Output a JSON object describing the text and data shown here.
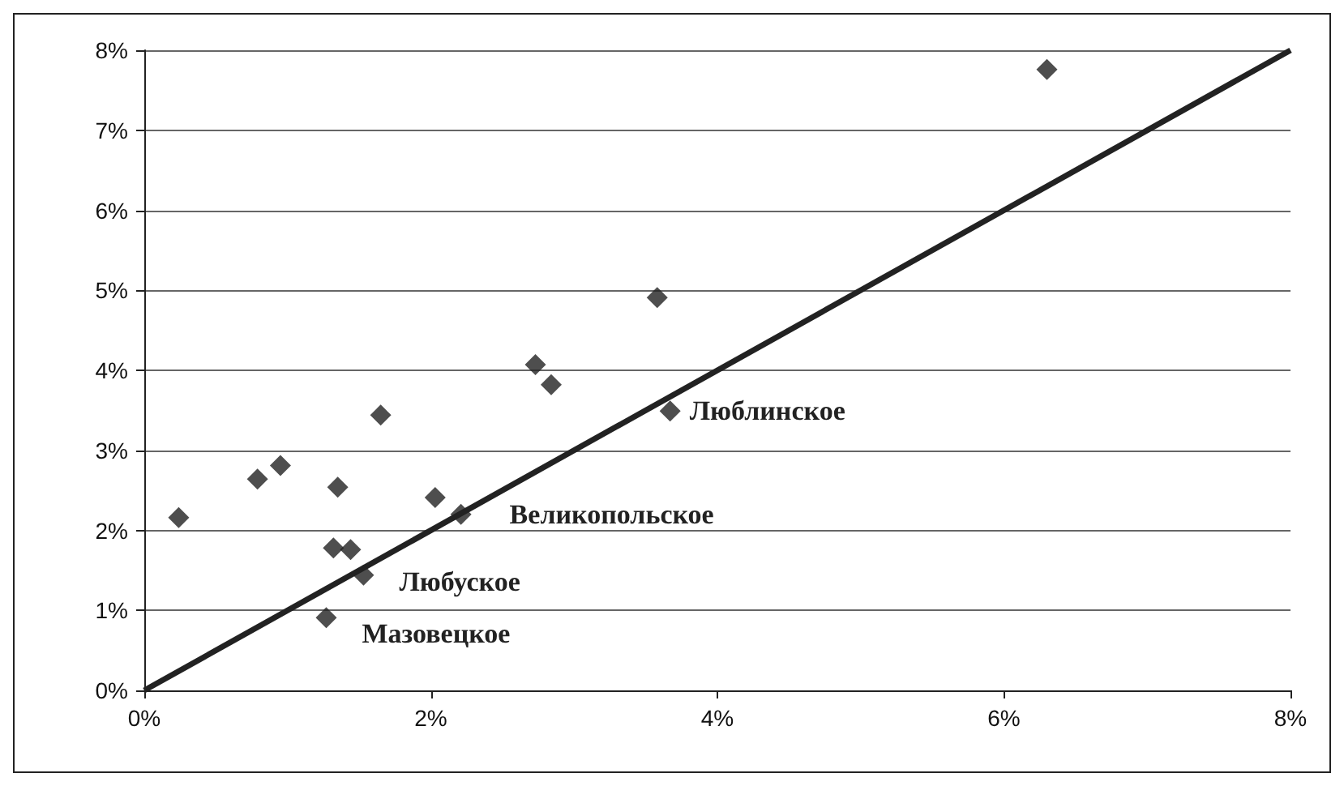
{
  "chart_data": {
    "type": "scatter",
    "marker": "diamond",
    "grid": "y",
    "xlim": [
      0,
      8
    ],
    "xticks": [
      {
        "value": 0,
        "label": "0%"
      },
      {
        "value": 2,
        "label": "2%"
      },
      {
        "value": 4,
        "label": "4%"
      },
      {
        "value": 6,
        "label": "6%"
      },
      {
        "value": 8,
        "label": "8%"
      }
    ],
    "ylim": [
      0,
      8
    ],
    "yticks": [
      {
        "value": 0,
        "label": "0%"
      },
      {
        "value": 1,
        "label": "1%"
      },
      {
        "value": 2,
        "label": "2%"
      },
      {
        "value": 3,
        "label": "3%"
      },
      {
        "value": 4,
        "label": "4%"
      },
      {
        "value": 5,
        "label": "5%"
      },
      {
        "value": 6,
        "label": "6%"
      },
      {
        "value": 7,
        "label": "7%"
      },
      {
        "value": 8,
        "label": "8%"
      }
    ],
    "series": [
      {
        "type": "scatter",
        "color": "#222222",
        "x": [
          0.24,
          0.79,
          0.95,
          1.35,
          1.32,
          1.44,
          1.53,
          1.27,
          1.65,
          2.03,
          2.21,
          2.73,
          2.84,
          3.58,
          3.67,
          6.3
        ],
        "values": [
          2.16,
          2.64,
          2.81,
          2.54,
          1.78,
          1.76,
          1.44,
          0.91,
          3.44,
          2.41,
          2.2,
          4.07,
          3.82,
          4.91,
          3.49,
          7.76
        ]
      },
      {
        "type": "line",
        "color": "#222222",
        "line_style": "solid",
        "marker": "none",
        "x": [
          0,
          8
        ],
        "values": [
          0,
          8
        ]
      }
    ],
    "annotations": [
      {
        "text": "Люблинское",
        "x": 3.67,
        "y": 3.49
      },
      {
        "text": "Великопольское",
        "x": 2.21,
        "y": 2.2
      },
      {
        "text": "Любуское",
        "x": 1.53,
        "y": 1.44
      },
      {
        "text": "Мазовецкое",
        "x": 1.27,
        "y": 0.91
      }
    ]
  }
}
